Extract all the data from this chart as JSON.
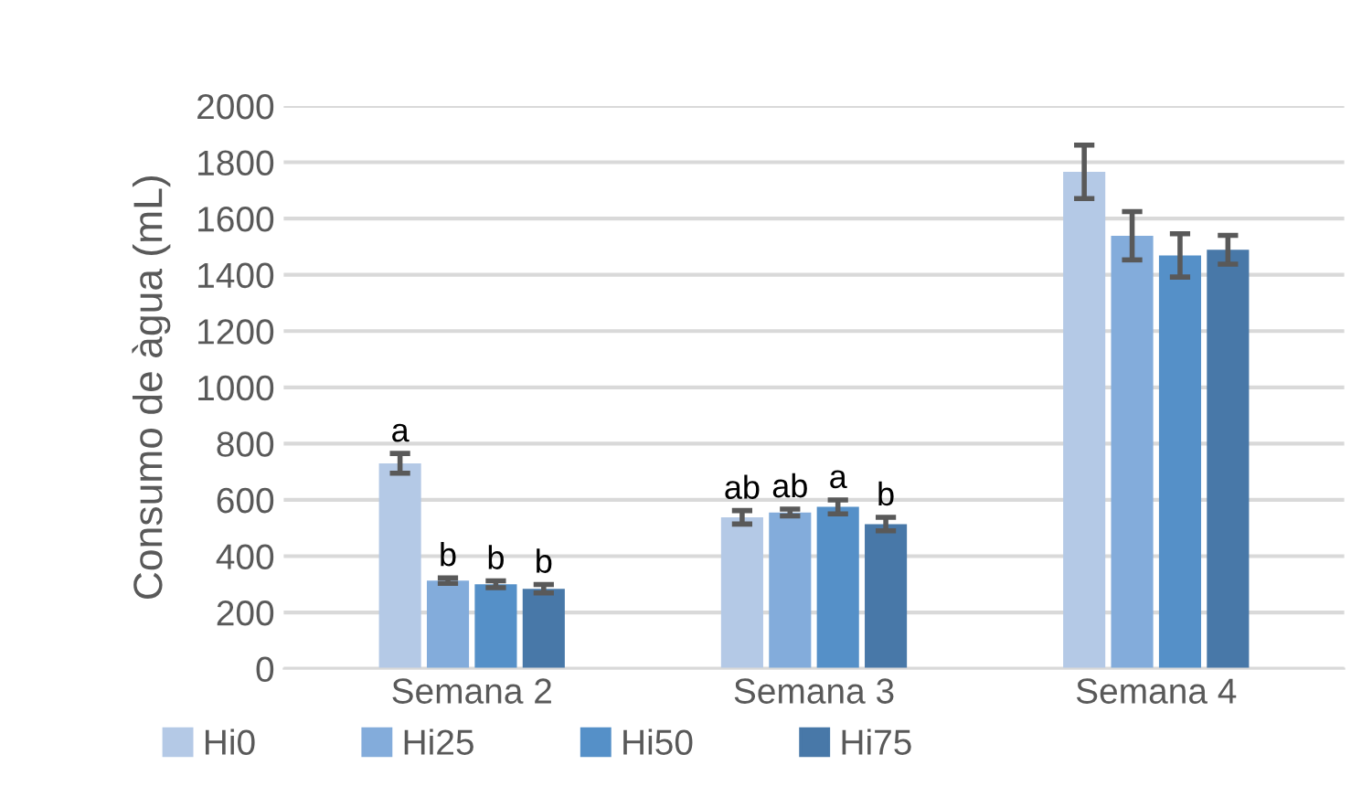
{
  "chart_data": {
    "type": "bar",
    "ylabel": "Consumo de àgua (mL)",
    "categories": [
      "Semana 2",
      "Semana 3",
      "Semana 4"
    ],
    "series": [
      {
        "name": "Hi0",
        "color": "#b4c9e6",
        "values": [
          730,
          538,
          1766
        ],
        "errors": [
          35,
          24,
          95
        ],
        "value_labels": [
          "a",
          "ab",
          null
        ]
      },
      {
        "name": "Hi25",
        "color": "#83acdb",
        "values": [
          313,
          555,
          1539
        ],
        "errors": [
          10,
          12,
          86
        ],
        "value_labels": [
          "b",
          "ab",
          null
        ]
      },
      {
        "name": "Hi50",
        "color": "#5590c8",
        "values": [
          300,
          575,
          1469
        ],
        "errors": [
          12,
          25,
          77
        ],
        "value_labels": [
          "b",
          "a",
          null
        ]
      },
      {
        "name": "Hi75",
        "color": "#4878a8",
        "values": [
          284,
          514,
          1489
        ],
        "errors": [
          15,
          24,
          51
        ],
        "value_labels": [
          "b",
          "b",
          null
        ]
      }
    ],
    "ylim": [
      0,
      2000
    ],
    "yticks": [
      0,
      200,
      400,
      600,
      800,
      1000,
      1200,
      1400,
      1600,
      1800,
      2000
    ],
    "grid": "y",
    "legend": "bottom"
  }
}
